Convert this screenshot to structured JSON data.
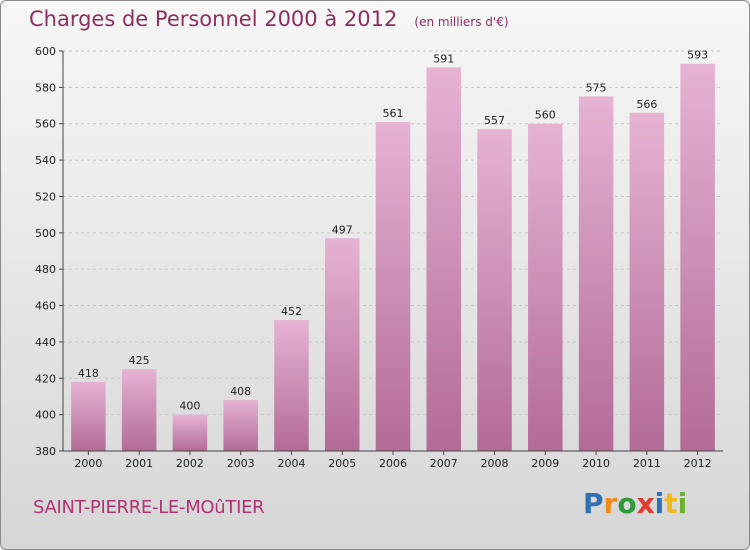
{
  "header": {
    "title": "Charges de Personnel 2000 à 2012",
    "subtitle": "(en milliers d'€)"
  },
  "footer": {
    "town": "SAINT-PIERRE-LE-MOûTIER",
    "logo": {
      "text": "Proxiti",
      "letters": [
        {
          "char": "P",
          "color": "#2f6fb4"
        },
        {
          "char": "r",
          "color": "#f08a1c"
        },
        {
          "char": "o",
          "color": "#2f9a3a"
        },
        {
          "char": "x",
          "color": "#e23b2b"
        },
        {
          "char": "i",
          "color": "#2f6fb4"
        },
        {
          "char": "t",
          "color": "#f0b81c"
        },
        {
          "char": "i",
          "color": "#6bb02f"
        }
      ]
    }
  },
  "colors": {
    "bar_top": "#e6b3d3",
    "bar_bottom": "#b26b97",
    "title": "#8e2f5e",
    "town": "#b03472"
  },
  "chart_data": {
    "type": "bar",
    "categories": [
      "2000",
      "2001",
      "2002",
      "2003",
      "2004",
      "2005",
      "2006",
      "2007",
      "2008",
      "2009",
      "2010",
      "2011",
      "2012"
    ],
    "values": [
      418,
      425,
      400,
      408,
      452,
      497,
      561,
      591,
      557,
      560,
      575,
      566,
      593
    ],
    "ylim": [
      380,
      600
    ],
    "yticks": [
      380,
      400,
      420,
      440,
      460,
      480,
      500,
      520,
      540,
      560,
      580,
      600
    ],
    "grid": true
  }
}
